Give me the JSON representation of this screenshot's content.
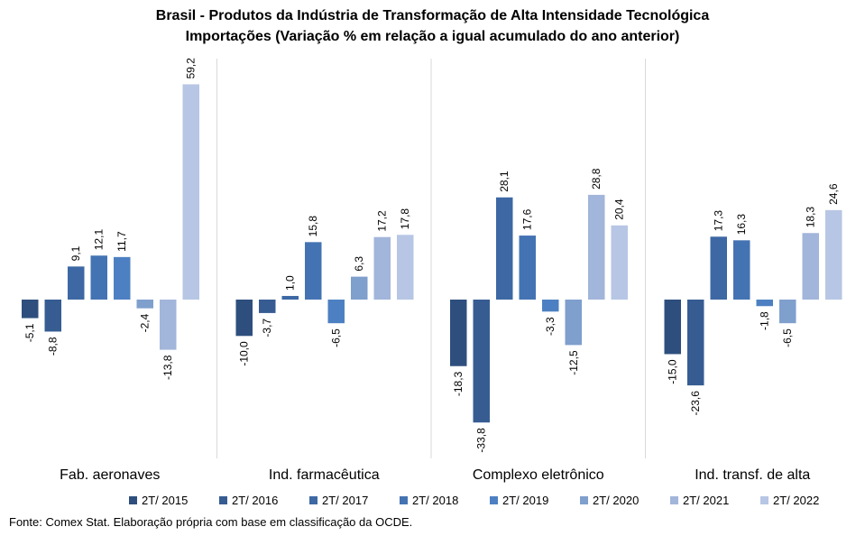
{
  "chart_data": {
    "type": "bar",
    "title": "Brasil - Produtos da Indústria de Transformação de Alta Intensidade Tecnológica",
    "subtitle": "Importações (Variação % em relação a igual acumulado do ano anterior)",
    "categories": [
      "Fab. aeronaves",
      "Ind. farmacêutica",
      "Complexo eletrônico",
      "Ind. transf. de alta"
    ],
    "series": [
      {
        "name": "2T/ 2015",
        "color": "#2e4f7e",
        "values": [
          -5.1,
          -10.0,
          -18.3,
          -15.0
        ],
        "labels": [
          "-5,1",
          "-10,0",
          "-18,3",
          "-15,0"
        ]
      },
      {
        "name": "2T/ 2016",
        "color": "#365c92",
        "values": [
          -8.8,
          -3.7,
          -33.8,
          -23.6
        ],
        "labels": [
          "-8,8",
          "-3,7",
          "-33,8",
          "-23,6"
        ]
      },
      {
        "name": "2T/ 2017",
        "color": "#3d68a4",
        "values": [
          9.1,
          1.0,
          28.1,
          17.3
        ],
        "labels": [
          "9,1",
          "1,0",
          "28,1",
          "17,3"
        ]
      },
      {
        "name": "2T/ 2018",
        "color": "#4473b3",
        "values": [
          12.1,
          15.8,
          17.6,
          16.3
        ],
        "labels": [
          "12,1",
          "15,8",
          "17,6",
          "16,3"
        ]
      },
      {
        "name": "2T/ 2019",
        "color": "#4d80c2",
        "values": [
          11.7,
          -6.5,
          -3.3,
          -1.8
        ],
        "labels": [
          "11,7",
          "-6,5",
          "-3,3",
          "-1,8"
        ]
      },
      {
        "name": "2T/ 2020",
        "color": "#7f9fcd",
        "values": [
          -2.4,
          6.3,
          -12.5,
          -6.5
        ],
        "labels": [
          "-2,4",
          "6,3",
          "-12,5",
          "-6,5"
        ]
      },
      {
        "name": "2T/ 2021",
        "color": "#a2b5da",
        "values": [
          -13.8,
          17.2,
          28.8,
          18.3
        ],
        "labels": [
          "-13,8",
          "17,2",
          "28,8",
          "18,3"
        ]
      },
      {
        "name": "2T/ 2022",
        "color": "#b7c6e4",
        "values": [
          59.2,
          17.8,
          20.4,
          24.6
        ],
        "labels": [
          "59,2",
          "17,8",
          "20,4",
          "24,6"
        ]
      }
    ],
    "ylim": [
      -34,
      66
    ],
    "grid": false,
    "legend_position": "bottom",
    "source": "Fonte: Comex Stat. Elaboração própria com base em classificação da OCDE."
  }
}
